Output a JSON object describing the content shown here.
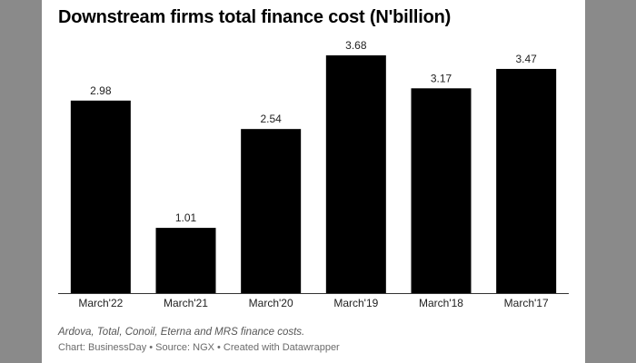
{
  "chart_data": {
    "type": "bar",
    "title": "Downstream firms total finance cost (N'billion)",
    "categories": [
      "March'22",
      "March'21",
      "March'20",
      "March'19",
      "March'18",
      "March'17"
    ],
    "values": [
      2.98,
      1.01,
      2.54,
      3.68,
      3.17,
      3.47
    ],
    "value_labels": [
      "2.98",
      "1.01",
      "2.54",
      "3.68",
      "3.17",
      "3.47"
    ],
    "xlabel": "",
    "ylabel": "",
    "ylim": [
      0,
      3.68
    ],
    "grid": false,
    "bar_color": "#000000",
    "notes": "Ardova, Total, Conoil, Eterna and MRS finance costs.",
    "credits": "Chart: BusinessDay • Source: NGX • Created with Datawrapper"
  }
}
